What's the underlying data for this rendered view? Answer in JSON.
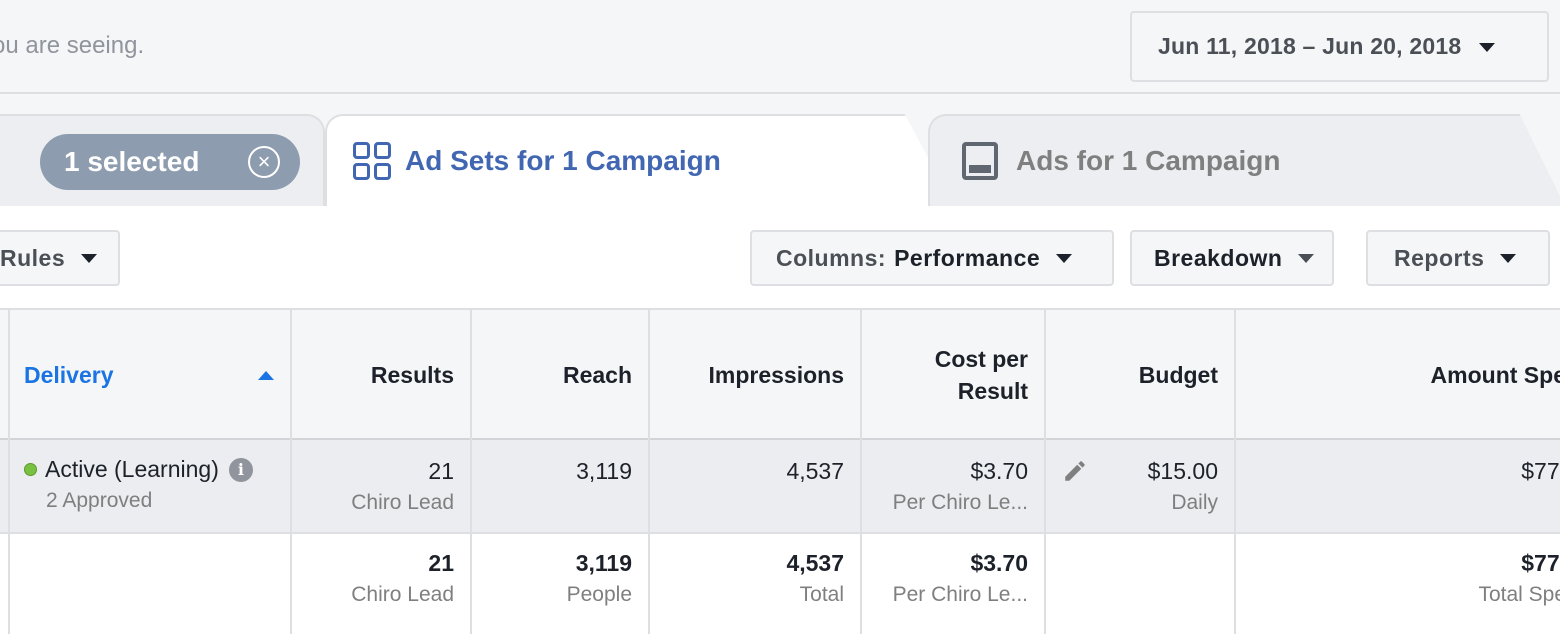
{
  "topbar": {
    "hint": "ou are seeing.",
    "date_range": "Jun 11, 2018 – Jun 20, 2018"
  },
  "tabs": {
    "selected_label": "1 selected",
    "active_label": "Ad Sets for 1 Campaign",
    "inactive_label": "Ads for 1 Campaign"
  },
  "toolbar": {
    "rules": "Rules",
    "columns_label": "Columns:",
    "columns_value": "Performance",
    "breakdown": "Breakdown",
    "reports": "Reports"
  },
  "table": {
    "headers": {
      "delivery": "Delivery",
      "results": "Results",
      "reach": "Reach",
      "impressions": "Impressions",
      "cost_per_result_1": "Cost per",
      "cost_per_result_2": "Result",
      "budget": "Budget",
      "amount_spent": "Amount Spe"
    },
    "row": {
      "status": "Active (Learning)",
      "approved": "2 Approved",
      "results": "21",
      "results_sub": "Chiro Lead",
      "reach": "3,119",
      "impressions": "4,537",
      "cost": "$3.70",
      "cost_sub": "Per Chiro Le...",
      "budget": "$15.00",
      "budget_sub": "Daily",
      "amount": "$77."
    },
    "summary": {
      "results": "21",
      "results_sub": "Chiro Lead",
      "reach": "3,119",
      "reach_sub": "People",
      "impressions": "4,537",
      "impressions_sub": "Total",
      "cost": "$3.70",
      "cost_sub": "Per Chiro Le...",
      "amount": "$77.",
      "amount_sub": "Total Spe"
    }
  },
  "colors": {
    "accent": "#4267b2",
    "link_blue": "#1b74e4",
    "pill": "#8d9cae",
    "active_dot": "#7ac143"
  },
  "icons": [
    "chevron-down-icon",
    "close-circle-icon",
    "ad-sets-grid-icon",
    "ad-icon",
    "sort-ascending-icon",
    "info-icon",
    "pencil-icon"
  ]
}
